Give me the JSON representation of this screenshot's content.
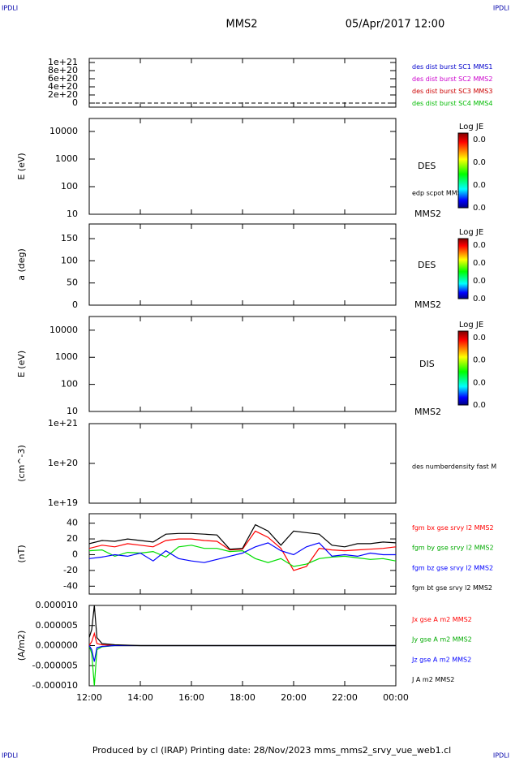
{
  "header": {
    "corner": "IPDLI",
    "title": "MMS2",
    "date": "05/Apr/2017 12:00"
  },
  "footer": "Produced by cl (IRAP)   Printing date: 28/Nov/2023   mms_mms2_srvy_vue_web1.cl",
  "chart_data": [
    {
      "type": "line",
      "ylim": [
        -1e+20,
        1.1e+21
      ],
      "yticks": [
        0,
        {
          "value": 2e+20,
          "label": "2e+20"
        },
        {
          "value": 4e+20,
          "label": "4e+20"
        },
        {
          "value": 6e+20,
          "label": "6e+20"
        },
        {
          "value": 8e+20,
          "label": "8e+20"
        },
        {
          "value": 1e+21,
          "label": "1e+21"
        }
      ],
      "reference_line": 0,
      "legend": [
        {
          "name": "des dist burst SC1 MMS1",
          "color": "#0000cc"
        },
        {
          "name": "des dist burst SC2 MMS2",
          "color": "#cc00cc"
        },
        {
          "name": "des dist burst SC3 MMS3",
          "color": "#cc0000"
        },
        {
          "name": "des dist burst SC4 MMS4",
          "color": "#00bb00"
        }
      ]
    },
    {
      "type": "spectrogram",
      "ylabel": "E (eV)",
      "log": true,
      "ylim": [
        10,
        29500
      ],
      "yticks": [
        10,
        100,
        1000,
        10000
      ],
      "annotations": [
        "DES",
        "edp scpot MMS2",
        "MMS2"
      ],
      "colorbar": {
        "label": "Log JE",
        "ticks": [
          "0.0",
          "0.0",
          "0.0",
          "0.0"
        ]
      }
    },
    {
      "type": "spectrogram",
      "ylabel": "a (deg)",
      "ylim": [
        0,
        183
      ],
      "yticks": [
        0,
        50,
        100,
        150
      ],
      "annotations": [
        "DES",
        "MMS2"
      ],
      "colorbar": {
        "label": "Log JE",
        "ticks": [
          "0.0",
          "0.0",
          "0.0",
          "0.0"
        ]
      }
    },
    {
      "type": "spectrogram",
      "ylabel": "E (eV)",
      "log": true,
      "ylim": [
        10,
        32000
      ],
      "yticks": [
        10,
        100,
        1000,
        10000
      ],
      "annotations": [
        "DIS",
        "MMS2"
      ],
      "colorbar": {
        "label": "Log JE",
        "ticks": [
          "0.0",
          "0.0",
          "0.0",
          "0.0"
        ]
      }
    },
    {
      "type": "line",
      "ylabel": "(cm^-3)",
      "log": true,
      "ylim": [
        1e+19,
        1e+21
      ],
      "yticks": [
        {
          "value": 1e+19,
          "label": "1e+19"
        },
        {
          "value": 1e+20,
          "label": "1e+20"
        },
        {
          "value": 1e+21,
          "label": "1e+21"
        }
      ],
      "annotations": [
        "des numberdensity fast M"
      ]
    },
    {
      "type": "line",
      "ylabel": "(nT)",
      "ylim": [
        -50,
        52
      ],
      "yticks": [
        -40,
        -20,
        0,
        20,
        40
      ],
      "x": [
        12,
        12.5,
        13,
        13.5,
        14,
        14.5,
        15,
        15.5,
        16,
        16.5,
        17,
        17.5,
        18,
        18.5,
        19,
        19.5,
        20,
        20.5,
        21,
        21.5,
        22,
        22.5,
        23,
        23.5,
        24
      ],
      "series": [
        {
          "name": "fgm bx gse srvy l2 MMS2",
          "color": "#ff0000",
          "values": [
            8,
            12,
            10,
            14,
            12,
            10,
            18,
            20,
            20,
            18,
            17,
            6,
            7,
            30,
            22,
            8,
            -20,
            -15,
            8,
            6,
            5,
            6,
            7,
            8,
            10
          ]
        },
        {
          "name": "fgm by gse srvy l2 MMS2",
          "color": "#00dd00",
          "values": [
            5,
            6,
            -2,
            3,
            2,
            4,
            -3,
            10,
            12,
            8,
            8,
            4,
            5,
            -5,
            -10,
            -5,
            -15,
            -12,
            -5,
            -3,
            -2,
            -4,
            -6,
            -5,
            -8
          ]
        },
        {
          "name": "fgm bz gse srvy l2 MMS2",
          "color": "#0000ff",
          "values": [
            -5,
            -3,
            0,
            -2,
            2,
            -8,
            5,
            -5,
            -8,
            -10,
            -6,
            -2,
            2,
            10,
            15,
            5,
            0,
            10,
            15,
            -2,
            0,
            -2,
            2,
            0,
            0
          ]
        },
        {
          "name": "fgm bt gse srvy l2 MMS2",
          "color": "#000000",
          "values": [
            14,
            18,
            17,
            20,
            18,
            16,
            26,
            27,
            27,
            26,
            25,
            7,
            8,
            38,
            30,
            12,
            30,
            28,
            26,
            12,
            10,
            14,
            14,
            16,
            15
          ]
        }
      ]
    },
    {
      "type": "line",
      "ylabel": "(A/m2)",
      "ylim": [
        -1e-05,
        1e-05
      ],
      "yticks": [
        {
          "value": -1e-05,
          "label": "-0.000010"
        },
        {
          "value": -5e-06,
          "label": "-0.000005"
        },
        {
          "value": 0,
          "label": "0.000000"
        },
        {
          "value": 5e-06,
          "label": "0.000005"
        },
        {
          "value": 1e-05,
          "label": "0.000010"
        }
      ],
      "x": [
        12,
        12.1,
        12.2,
        12.3,
        12.5,
        13,
        14,
        16,
        18,
        20,
        22,
        24
      ],
      "series": [
        {
          "name": "Jx gse A m2 MMS2",
          "color": "#ff0000",
          "values": [
            0,
            1e-06,
            3e-06,
            5e-07,
            2e-07,
            0,
            0,
            0,
            0,
            0,
            0,
            0
          ]
        },
        {
          "name": "Jy gse A m2 MMS2",
          "color": "#00dd00",
          "values": [
            0,
            -2e-06,
            -1e-05,
            -1e-06,
            -3e-07,
            0,
            0,
            0,
            0,
            0,
            0,
            0
          ]
        },
        {
          "name": "Jz gse A m2 MMS2",
          "color": "#0000ff",
          "values": [
            0,
            -1e-06,
            -4e-06,
            -5e-07,
            -2e-07,
            0,
            0,
            0,
            0,
            0,
            0,
            0
          ]
        },
        {
          "name": "J A m2 MMS2",
          "color": "#000000",
          "values": [
            2e-06,
            4e-06,
            1e-05,
            2e-06,
            5e-07,
            2e-07,
            0,
            0,
            0,
            0,
            0,
            0
          ]
        }
      ],
      "xlim": [
        12,
        24
      ],
      "xticks": [
        {
          "value": 12,
          "label": "12:00"
        },
        {
          "value": 14,
          "label": "14:00"
        },
        {
          "value": 16,
          "label": "16:00"
        },
        {
          "value": 18,
          "label": "18:00"
        },
        {
          "value": 20,
          "label": "20:00"
        },
        {
          "value": 22,
          "label": "22:00"
        },
        {
          "value": 24,
          "label": "00:00"
        }
      ]
    }
  ]
}
